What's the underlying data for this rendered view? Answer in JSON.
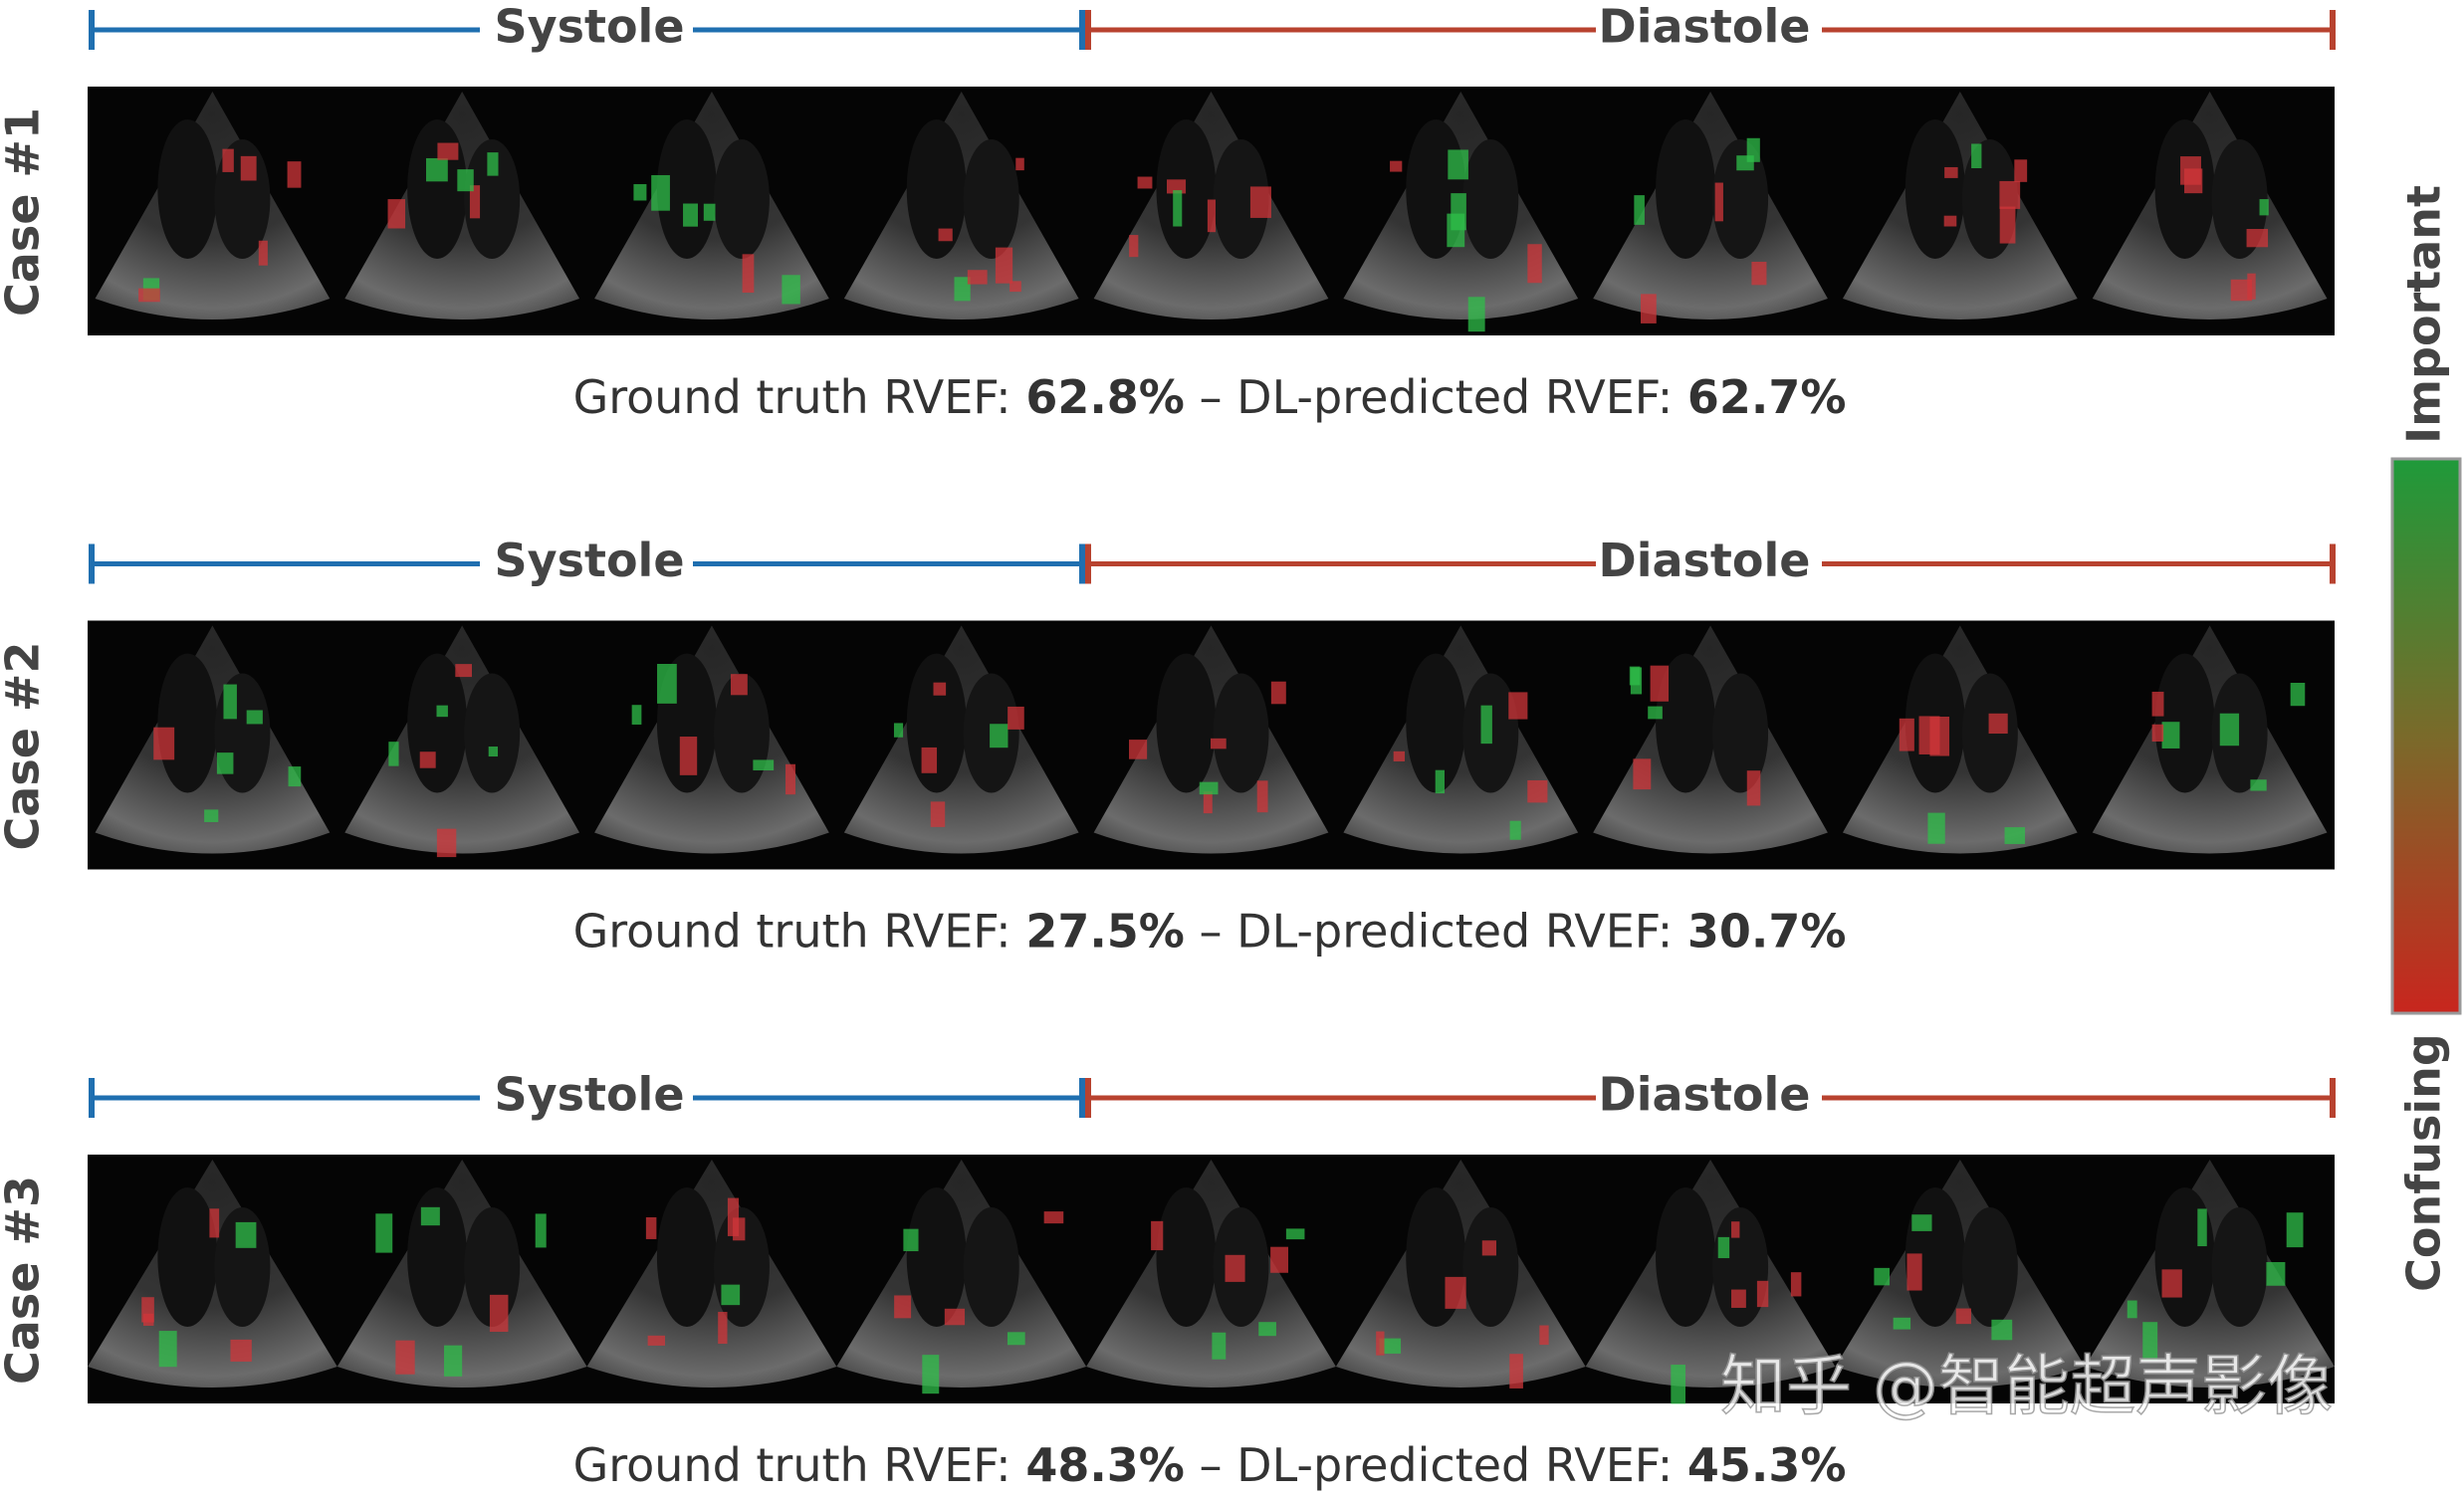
{
  "cases": [
    {
      "label": "Case #1",
      "systole": "Systole",
      "diastole": "Diastole",
      "caption": {
        "truth_label": "Ground truth RVEF:",
        "truth_value": "62.8%",
        "separator": "–",
        "predicted_label": "DL-predicted RVEF:",
        "predicted_value": "62.7%"
      }
    },
    {
      "label": "Case #2",
      "systole": "Systole",
      "diastole": "Diastole",
      "caption": {
        "truth_label": "Ground truth RVEF:",
        "truth_value": "27.5%",
        "separator": "–",
        "predicted_label": "DL-predicted RVEF:",
        "predicted_value": "30.7%"
      }
    },
    {
      "label": "Case #3",
      "systole": "Systole",
      "diastole": "Diastole",
      "caption": {
        "truth_label": "Ground truth RVEF:",
        "truth_value": "48.3%",
        "separator": "–",
        "predicted_label": "DL-predicted RVEF:",
        "predicted_value": "45.3%"
      }
    }
  ],
  "colorbar": {
    "top_label": "Important",
    "bottom_label": "Confusing"
  },
  "watermark": "知乎 @智能超声影像"
}
